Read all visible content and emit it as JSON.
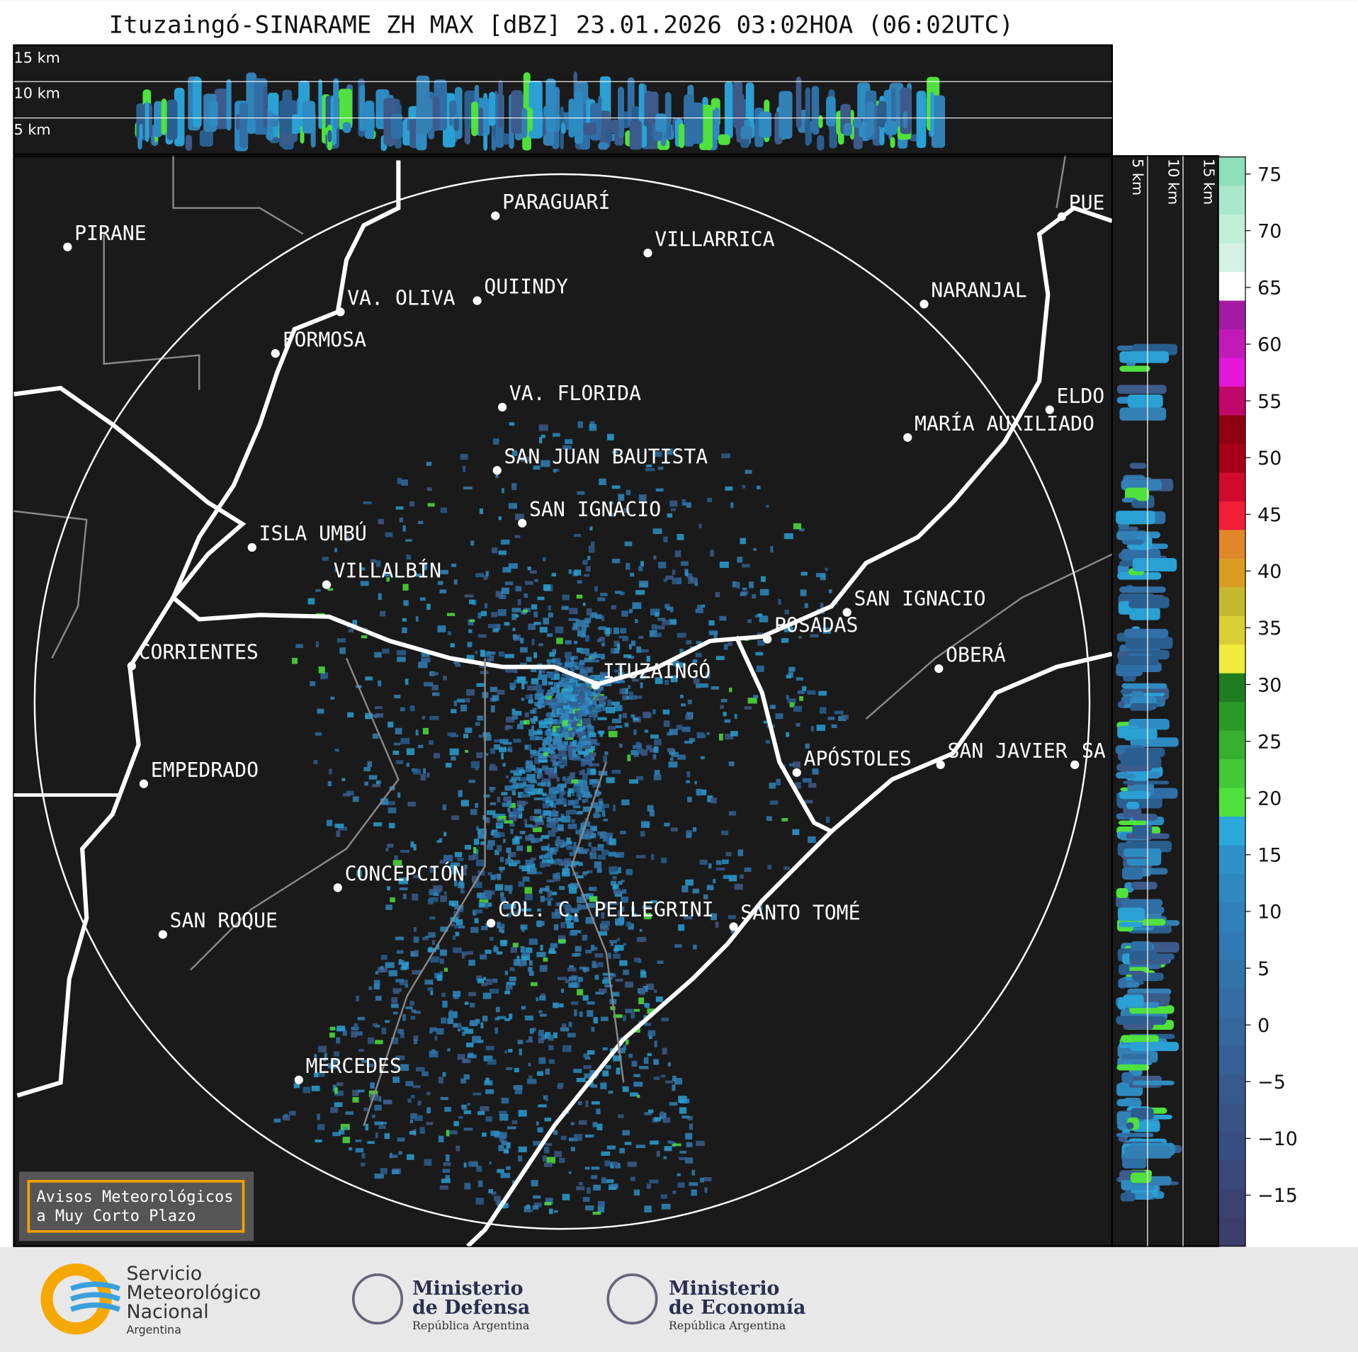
{
  "title": "Ituzaingó-SINARAME ZH MAX [dBZ] 23.01.2026 03:02HOA (06:02UTC)",
  "height_labels": [
    "15 km",
    "10 km",
    "5 km"
  ],
  "cities": [
    "PARAGUARÍ",
    "PIRANE",
    "VILLARRICA",
    "QUIINDY",
    "VA. OLIVA",
    "NARANJAL",
    "FORMOSA",
    "VA. FLORIDA",
    "ELDO",
    "MARÍA AUXILIADO",
    "SAN JUAN BAUTISTA",
    "SAN IGNACIO",
    "ISLA UMBÚ",
    "VILLALBÍN",
    "SAN IGNACIO",
    "POSADAS",
    "CORRIENTES",
    "OBERÁ",
    "ITUZAINGÓ",
    "APÓSTOLES",
    "SAN JAVIER",
    "SA",
    "PUE",
    "EMPEDRADO",
    "CONCEPCIÓN",
    "SAN ROQUE",
    "COL. C. PELLEGRINI",
    "SANTO TOMÉ",
    "MERCEDES"
  ],
  "warning_box": [
    "Avisos Meteorológicos",
    "a Muy Corto Plazo"
  ],
  "logos": [
    {
      "lines": [
        "Servicio",
        "Meteorológico",
        "Nacional"
      ],
      "sub": "Argentina"
    },
    {
      "lines": [
        "Ministerio",
        "de Defensa"
      ],
      "sub": "República Argentina"
    },
    {
      "lines": [
        "Ministerio",
        "de Economía"
      ],
      "sub": "República Argentina"
    }
  ],
  "colorbar": {
    "lim": [
      -19.5,
      76.5
    ],
    "ticks": [
      {
        "value": -15,
        "label": "−15"
      },
      {
        "value": -10,
        "label": "−10"
      },
      {
        "value": -5,
        "label": "−5"
      },
      0,
      5,
      10,
      15,
      20,
      25,
      30,
      35,
      40,
      45,
      50,
      55,
      60,
      65,
      70,
      75
    ],
    "colors": [
      "#3b3d6b",
      "#3b4272",
      "#3a4879",
      "#394e80",
      "#385487",
      "#365a8e",
      "#356095",
      "#34679c",
      "#336da3",
      "#3273aa",
      "#307ab1",
      "#2f81b8",
      "#2e89bf",
      "#2d91c7",
      "#2ba7d9",
      "#4fe13d",
      "#42c936",
      "#36b12f",
      "#2a9a27",
      "#1f7d1f",
      "#efec3d",
      "#d9cf32",
      "#c4b92e",
      "#d99d22",
      "#e0872a",
      "#ef1e36",
      "#cf0a2c",
      "#a80016",
      "#8f0012",
      "#c0086a",
      "#e416d8",
      "#c21ab9",
      "#a51aa5",
      "#ffffff",
      "#d4f2e4",
      "#bfeed9",
      "#a9e8cc",
      "#8fdfbc"
    ]
  }
}
